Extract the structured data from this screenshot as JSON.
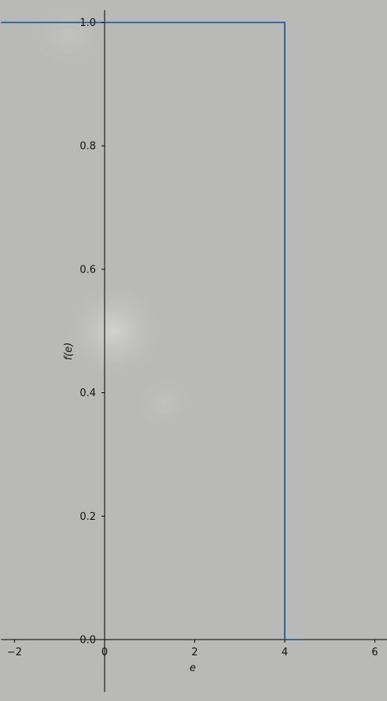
{
  "chart_data": {
    "type": "line",
    "title": "",
    "xlabel": "e",
    "ylabel": "f(e)",
    "xlim": [
      -2.3,
      6.3
    ],
    "ylim": [
      -0.085,
      1.02
    ],
    "x_ticks": [
      -2,
      0,
      2,
      4,
      6
    ],
    "y_ticks": [
      0.0,
      0.2,
      0.4,
      0.6,
      0.8,
      1.0
    ],
    "x_tick_labels": [
      "−2",
      "0",
      "2",
      "4",
      "6"
    ],
    "y_tick_labels": [
      "0.0",
      "0.2",
      "0.4",
      "0.6",
      "0.8",
      "1.0"
    ],
    "grid": false,
    "legend": "none",
    "spines": "centered at origin",
    "series": [
      {
        "color": "#1f5f96",
        "style": "step",
        "x": [
          -2.3,
          4.0,
          4.0,
          4.35
        ],
        "y": [
          1.0,
          1.0,
          0.0,
          0.0
        ]
      }
    ]
  },
  "colors": {
    "background": "#b9bab7",
    "line": "#1f5f96",
    "axis": "#000000"
  }
}
